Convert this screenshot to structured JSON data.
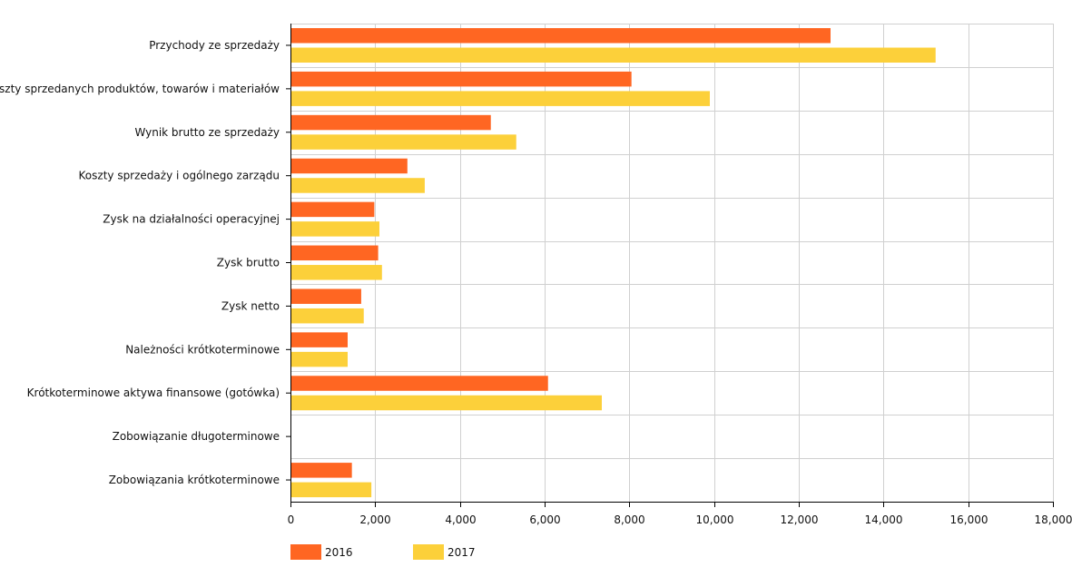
{
  "chart_data": {
    "type": "bar",
    "orientation": "horizontal",
    "categories": [
      "Przychody ze sprzedaży",
      "Koszty sprzedanych produktów, towarów i materiałów",
      "Wynik brutto ze sprzedaży",
      "Koszty sprzedaży i ogólnego zarządu",
      "Zysk na działalności operacyjnej",
      "Zysk brutto",
      "Zysk netto",
      "Należności krótkoterminowe",
      "Krótkoterminowe aktywa finansowe (gotówka)",
      "Zobowiązanie długoterminowe",
      "Zobowiązania krótkoterminowe"
    ],
    "series": [
      {
        "name": "2016",
        "color": "#ff6622",
        "values": [
          12750,
          8050,
          4730,
          2760,
          1980,
          2070,
          1670,
          1350,
          6080,
          0,
          1450
        ]
      },
      {
        "name": "2017",
        "color": "#fcd03a",
        "values": [
          15230,
          9900,
          5330,
          3170,
          2100,
          2160,
          1730,
          1350,
          7350,
          0,
          1910
        ]
      }
    ],
    "xlim": [
      0,
      18000
    ],
    "xticks": [
      0,
      2000,
      4000,
      6000,
      8000,
      10000,
      12000,
      14000,
      16000,
      18000
    ],
    "xtick_labels": [
      "0",
      "2,000",
      "4,000",
      "6,000",
      "8,000",
      "10,000",
      "12,000",
      "14,000",
      "16,000",
      "18,000"
    ],
    "grid": true,
    "legend_position": "bottom-left",
    "title": "",
    "xlabel": "",
    "ylabel": ""
  }
}
